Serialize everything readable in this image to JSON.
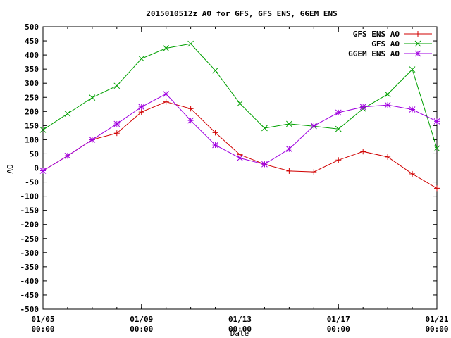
{
  "chart_data": {
    "type": "line",
    "title": "2015010512z AO for GFS, GFS ENS, GGEM ENS",
    "xlabel": "Date",
    "ylabel": "AO",
    "ylim": [
      -500,
      500
    ],
    "yticks": [
      500,
      450,
      400,
      350,
      300,
      250,
      200,
      150,
      100,
      50,
      0,
      -50,
      -100,
      -150,
      -200,
      -250,
      -300,
      -350,
      -400,
      -450,
      -500
    ],
    "xlim": [
      "01/05 00:00",
      "01/21 00:00"
    ],
    "xticks": [
      {
        "date": "01/05",
        "time": "00:00"
      },
      {
        "date": "01/09",
        "time": "00:00"
      },
      {
        "date": "01/13",
        "time": "00:00"
      },
      {
        "date": "01/17",
        "time": "00:00"
      },
      {
        "date": "01/21",
        "time": "00:00"
      }
    ],
    "x": [
      "01/05",
      "01/06",
      "01/07",
      "01/08",
      "01/09",
      "01/10",
      "01/11",
      "01/12",
      "01/13",
      "01/14",
      "01/15",
      "01/16",
      "01/17",
      "01/18",
      "01/19",
      "01/20",
      "01/21"
    ],
    "legend_position": "top-right",
    "zero_line": true,
    "series": [
      {
        "name": "GFS ENS AO",
        "color": "#d00000",
        "marker": "plus",
        "values": [
          -10,
          43,
          100,
          123,
          198,
          234,
          210,
          125,
          47,
          13,
          -11,
          -14,
          28,
          58,
          39,
          -21,
          -72
        ]
      },
      {
        "name": "GFS AO",
        "color": "#00a000",
        "marker": "cross",
        "values": [
          135,
          192,
          249,
          291,
          387,
          424,
          440,
          345,
          228,
          141,
          156,
          148,
          138,
          210,
          261,
          349,
          69
        ]
      },
      {
        "name": "GGEM ENS AO",
        "color": "#a000e0",
        "marker": "star",
        "values": [
          -10,
          43,
          100,
          156,
          216,
          262,
          168,
          81,
          35,
          13,
          67,
          149,
          196,
          216,
          223,
          207,
          165
        ]
      }
    ]
  }
}
